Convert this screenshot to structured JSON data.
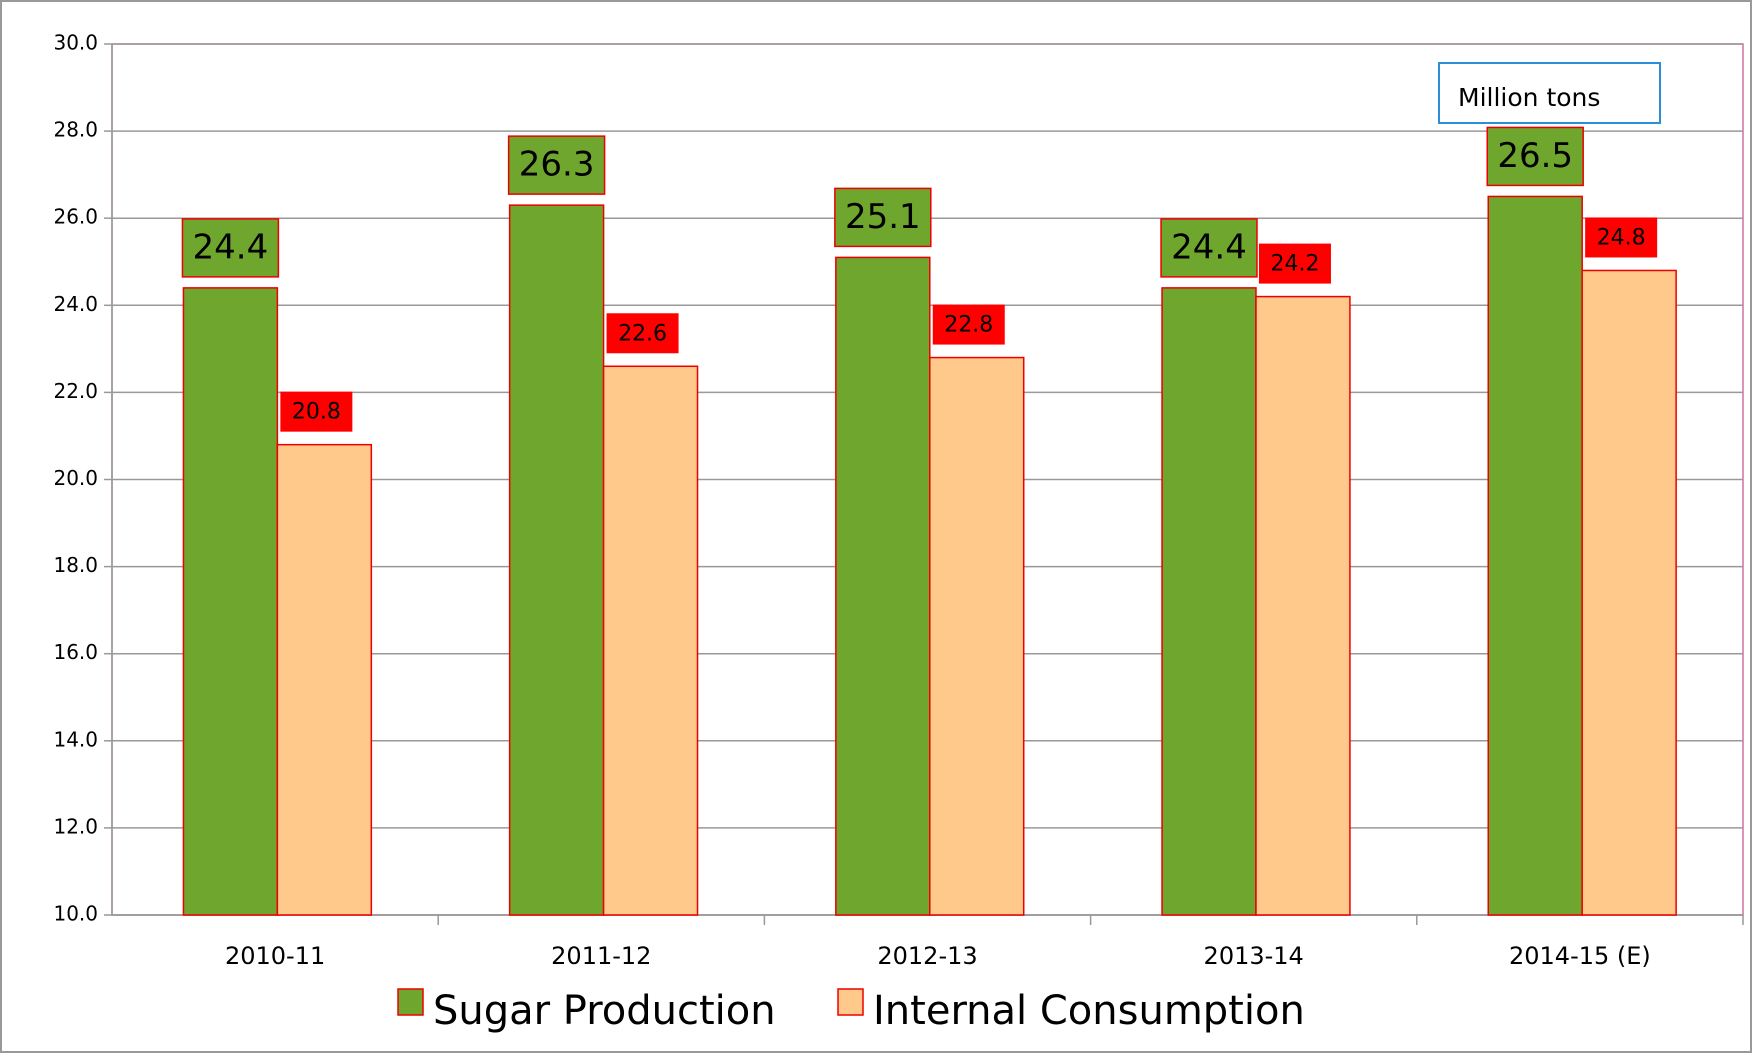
{
  "chart_data": {
    "type": "bar",
    "annotation": "Million tons",
    "categories": [
      "2010-11",
      "2011-12",
      "2012-13",
      "2013-14",
      "2014-15 (E)"
    ],
    "series": [
      {
        "name": "Sugar Production",
        "color": "#6ea62e",
        "values": [
          24.4,
          26.3,
          25.1,
          24.4,
          26.5
        ]
      },
      {
        "name": "Internal Consumption",
        "color": "#fec98a",
        "values": [
          20.8,
          22.6,
          22.8,
          24.2,
          24.8
        ]
      }
    ],
    "ylim": [
      10,
      30
    ],
    "yticks": [
      {
        "value": 10,
        "label": "10.0"
      },
      {
        "value": 12,
        "label": "12.0"
      },
      {
        "value": 14,
        "label": "14.0"
      },
      {
        "value": 16,
        "label": "16.0"
      },
      {
        "value": 18,
        "label": "18.0"
      },
      {
        "value": 20,
        "label": "20.0"
      },
      {
        "value": 22,
        "label": "22.0"
      },
      {
        "value": 24,
        "label": "24.0"
      },
      {
        "value": 26,
        "label": "26.0"
      },
      {
        "value": 28,
        "label": "28.0"
      },
      {
        "value": 30,
        "label": "30.0"
      }
    ],
    "grid": true,
    "legend": "bottom"
  }
}
